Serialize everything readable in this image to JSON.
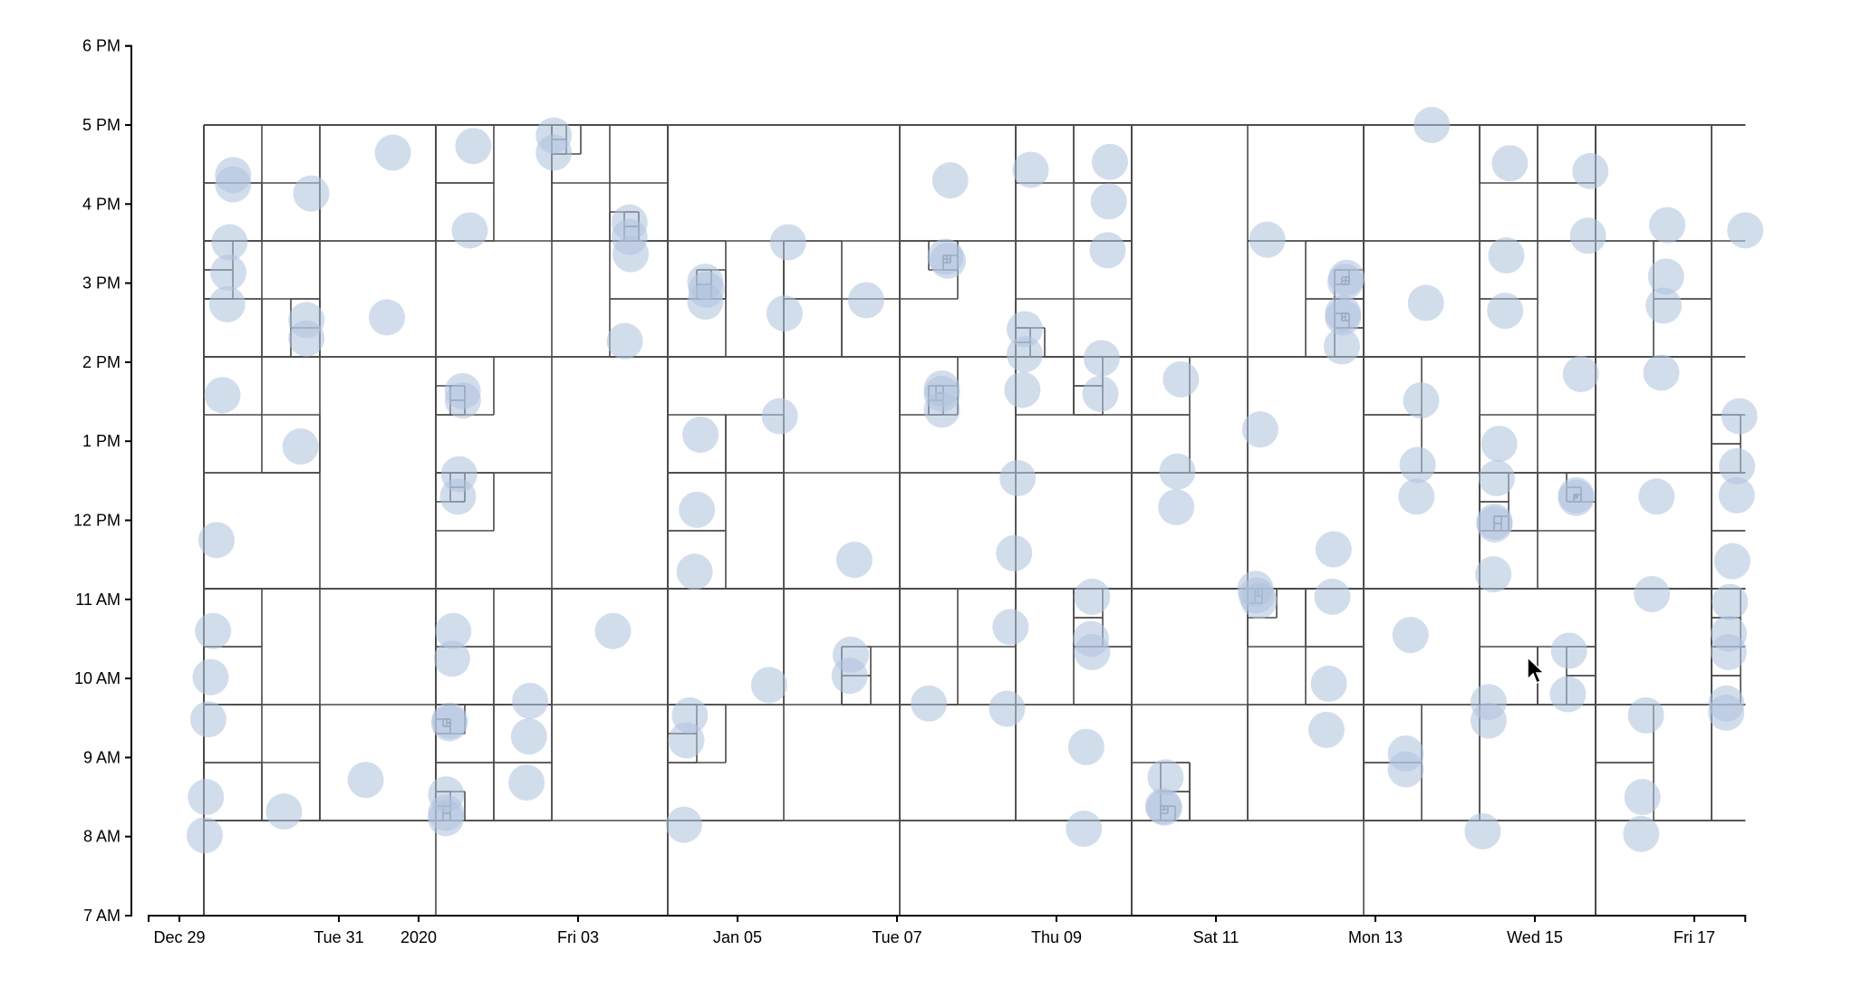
{
  "chart_data": {
    "type": "scatter",
    "title": "",
    "xlabel": "",
    "ylabel": "",
    "overlay": "quadtree",
    "xlim": [
      "2019-12-28T14:44",
      "2020-01-17T15:20"
    ],
    "ylim": [
      "07:00",
      "18:00"
    ],
    "grid": false,
    "colors": {
      "points": "#b0c4de",
      "quadtree": "#4a4a4a",
      "axis": "#000000"
    },
    "x_ticks": [
      {
        "value": "2019-12-29T00:00",
        "label": "Dec 29"
      },
      {
        "value": "2019-12-31T00:00",
        "label": "Tue 31"
      },
      {
        "value": "2020-01-01T00:00",
        "label": "2020"
      },
      {
        "value": "2020-01-03T00:00",
        "label": "Fri 03"
      },
      {
        "value": "2020-01-05T00:00",
        "label": "Jan 05"
      },
      {
        "value": "2020-01-07T00:00",
        "label": "Tue 07"
      },
      {
        "value": "2020-01-09T00:00",
        "label": "Thu 09"
      },
      {
        "value": "2020-01-11T00:00",
        "label": "Sat 11"
      },
      {
        "value": "2020-01-13T00:00",
        "label": "Mon 13"
      },
      {
        "value": "2020-01-15T00:00",
        "label": "Wed 15"
      },
      {
        "value": "2020-01-17T00:00",
        "label": "Fri 17"
      }
    ],
    "y_ticks": [
      {
        "value": "07:00",
        "label": "7 AM"
      },
      {
        "value": "08:00",
        "label": "8 AM"
      },
      {
        "value": "09:00",
        "label": "9 AM"
      },
      {
        "value": "10:00",
        "label": "10 AM"
      },
      {
        "value": "11:00",
        "label": "11 AM"
      },
      {
        "value": "12:00",
        "label": "12 PM"
      },
      {
        "value": "13:00",
        "label": "1 PM"
      },
      {
        "value": "14:00",
        "label": "2 PM"
      },
      {
        "value": "15:00",
        "label": "3 PM"
      },
      {
        "value": "16:00",
        "label": "4 PM"
      },
      {
        "value": "17:00",
        "label": "5 PM"
      },
      {
        "value": "18:00",
        "label": "6 PM"
      }
    ],
    "points": [
      [
        "2019-12-29T16:10",
        "16:22"
      ],
      [
        "2019-12-29T16:10",
        "16:15"
      ],
      [
        "2019-12-29T15:06",
        "15:31"
      ],
      [
        "2019-12-29T14:45",
        "15:08"
      ],
      [
        "2019-12-29T14:23",
        "14:44"
      ],
      [
        "2019-12-29T12:58",
        "13:35"
      ],
      [
        "2019-12-29T11:11",
        "11:45"
      ],
      [
        "2019-12-29T10:07",
        "10:36"
      ],
      [
        "2019-12-29T09:24",
        "10:01"
      ],
      [
        "2019-12-29T08:41",
        "09:29"
      ],
      [
        "2019-12-29T07:59",
        "08:30"
      ],
      [
        "2019-12-29T07:37",
        "08:01"
      ],
      [
        "2019-12-30T15:41",
        "16:08"
      ],
      [
        "2019-12-30T14:15",
        "14:32"
      ],
      [
        "2019-12-30T14:15",
        "14:18"
      ],
      [
        "2019-12-30T12:28",
        "12:56"
      ],
      [
        "2019-12-30T07:29",
        "08:19"
      ],
      [
        "2019-12-31T16:15",
        "16:39"
      ],
      [
        "2019-12-31T14:28",
        "14:34"
      ],
      [
        "2019-12-31T08:04",
        "08:43"
      ],
      [
        "2020-01-01T16:28",
        "16:44"
      ],
      [
        "2020-01-01T15:24",
        "15:40"
      ],
      [
        "2020-01-01T13:16",
        "13:38"
      ],
      [
        "2020-01-01T13:20",
        "13:31"
      ],
      [
        "2020-01-01T12:12",
        "12:35"
      ],
      [
        "2020-01-01T11:51",
        "12:18"
      ],
      [
        "2020-01-01T10:25",
        "10:36"
      ],
      [
        "2020-01-01T10:04",
        "10:15"
      ],
      [
        "2020-01-01T09:21",
        "09:28"
      ],
      [
        "2020-01-01T09:16",
        "09:26"
      ],
      [
        "2020-01-01T08:17",
        "08:32"
      ],
      [
        "2020-01-01T08:15",
        "08:18"
      ],
      [
        "2020-01-01T08:13",
        "08:14"
      ],
      [
        "2020-01-02T09:34",
        "09:43"
      ],
      [
        "2020-01-02T09:13",
        "09:16"
      ],
      [
        "2020-01-02T08:30",
        "08:41"
      ],
      [
        "2020-01-02T16:41",
        "16:52"
      ],
      [
        "2020-01-02T16:41",
        "16:39"
      ],
      [
        "2020-01-03T10:30",
        "10:36"
      ],
      [
        "2020-01-03T15:29",
        "15:46"
      ],
      [
        "2020-01-03T15:29",
        "15:35"
      ],
      [
        "2020-01-03T15:50",
        "15:22"
      ],
      [
        "2020-01-03T14:04",
        "14:16"
      ],
      [
        "2020-01-04T14:17",
        "15:01"
      ],
      [
        "2020-01-04T14:38",
        "14:55"
      ],
      [
        "2020-01-04T14:17",
        "14:46"
      ],
      [
        "2020-01-04T12:51",
        "13:05"
      ],
      [
        "2020-01-04T11:47",
        "12:08"
      ],
      [
        "2020-01-04T11:05",
        "11:21"
      ],
      [
        "2020-01-04T09:39",
        "09:32"
      ],
      [
        "2020-01-04T08:35",
        "09:13"
      ],
      [
        "2020-01-04T07:52",
        "08:09"
      ],
      [
        "2020-01-05T15:13",
        "15:31"
      ],
      [
        "2020-01-05T14:09",
        "14:37"
      ],
      [
        "2020-01-05T12:43",
        "13:19"
      ],
      [
        "2020-01-05T09:31",
        "09:55"
      ],
      [
        "2020-01-06T14:43",
        "14:47"
      ],
      [
        "2020-01-06T11:10",
        "11:30"
      ],
      [
        "2020-01-06T10:06",
        "10:18"
      ],
      [
        "2020-01-06T09:44",
        "10:02"
      ],
      [
        "2020-01-07T14:35",
        "15:20"
      ],
      [
        "2020-01-07T15:18",
        "15:17"
      ],
      [
        "2020-01-07T16:01",
        "16:18"
      ],
      [
        "2020-01-07T13:31",
        "13:40"
      ],
      [
        "2020-01-07T13:31",
        "13:36"
      ],
      [
        "2020-01-07T13:31",
        "13:24"
      ],
      [
        "2020-01-07T09:36",
        "09:41"
      ],
      [
        "2020-01-08T16:14",
        "16:26"
      ],
      [
        "2020-01-08T14:27",
        "14:25"
      ],
      [
        "2020-01-08T14:27",
        "14:06"
      ],
      [
        "2020-01-08T13:44",
        "13:39"
      ],
      [
        "2020-01-08T12:19",
        "12:32"
      ],
      [
        "2020-01-08T11:15",
        "11:35"
      ],
      [
        "2020-01-08T10:11",
        "10:39"
      ],
      [
        "2020-01-08T09:07",
        "09:37"
      ],
      [
        "2020-01-09T16:05",
        "16:32"
      ],
      [
        "2020-01-09T15:44",
        "16:02"
      ],
      [
        "2020-01-09T15:23",
        "15:25"
      ],
      [
        "2020-01-09T13:36",
        "14:03"
      ],
      [
        "2020-01-09T13:14",
        "13:36"
      ],
      [
        "2020-01-09T10:45",
        "11:02"
      ],
      [
        "2020-01-09T10:23",
        "10:30"
      ],
      [
        "2020-01-09T10:45",
        "10:20"
      ],
      [
        "2020-01-09T08:58",
        "09:08"
      ],
      [
        "2020-01-09T08:15",
        "08:06"
      ],
      [
        "2020-01-10T13:27",
        "13:47"
      ],
      [
        "2020-01-10T12:23",
        "12:37"
      ],
      [
        "2020-01-10T12:02",
        "12:10"
      ],
      [
        "2020-01-10T08:50",
        "08:45"
      ],
      [
        "2020-01-10T08:07",
        "08:23"
      ],
      [
        "2020-01-10T08:28",
        "08:22"
      ],
      [
        "2020-01-11T15:28",
        "15:33"
      ],
      [
        "2020-01-11T13:20",
        "13:09"
      ],
      [
        "2020-01-11T11:54",
        "11:08"
      ],
      [
        "2020-01-11T12:15",
        "11:03"
      ],
      [
        "2020-01-11T12:58",
        "10:59"
      ],
      [
        "2020-01-12T15:19",
        "15:04"
      ],
      [
        "2020-01-12T14:58",
        "15:01"
      ],
      [
        "2020-01-12T14:15",
        "14:37"
      ],
      [
        "2020-01-12T14:15",
        "14:34"
      ],
      [
        "2020-01-12T13:54",
        "14:12"
      ],
      [
        "2020-01-12T11:25",
        "11:38"
      ],
      [
        "2020-01-12T11:03",
        "11:02"
      ],
      [
        "2020-01-12T09:59",
        "09:56"
      ],
      [
        "2020-01-12T09:16",
        "09:21"
      ],
      [
        "2020-01-13T16:58",
        "17:00"
      ],
      [
        "2020-01-13T15:12",
        "14:45"
      ],
      [
        "2020-01-13T13:46",
        "13:31"
      ],
      [
        "2020-01-13T12:42",
        "12:42"
      ],
      [
        "2020-01-13T12:21",
        "12:18"
      ],
      [
        "2020-01-13T10:34",
        "10:33"
      ],
      [
        "2020-01-13T09:09",
        "09:03"
      ],
      [
        "2020-01-13T09:09",
        "08:51"
      ],
      [
        "2020-01-14T16:28",
        "16:31"
      ],
      [
        "2020-01-14T15:24",
        "15:21"
      ],
      [
        "2020-01-14T15:03",
        "14:39"
      ],
      [
        "2020-01-14T13:16",
        "12:58"
      ],
      [
        "2020-01-14T12:33",
        "12:32"
      ],
      [
        "2020-01-14T11:51",
        "11:59"
      ],
      [
        "2020-01-14T11:51",
        "11:57"
      ],
      [
        "2020-01-14T11:29",
        "11:19"
      ],
      [
        "2020-01-14T10:04",
        "09:42"
      ],
      [
        "2020-01-14T10:04",
        "09:28"
      ],
      [
        "2020-01-14T08:17",
        "08:04"
      ],
      [
        "2020-01-15T16:42",
        "16:25"
      ],
      [
        "2020-01-15T15:59",
        "15:36"
      ],
      [
        "2020-01-15T13:51",
        "13:51"
      ],
      [
        "2020-01-15T12:25",
        "12:19"
      ],
      [
        "2020-01-15T12:25",
        "12:17"
      ],
      [
        "2020-01-15T10:17",
        "10:21"
      ],
      [
        "2020-01-15T09:56",
        "09:48"
      ],
      [
        "2020-01-16T15:51",
        "15:44"
      ],
      [
        "2020-01-16T15:29",
        "15:05"
      ],
      [
        "2020-01-16T14:46",
        "14:43"
      ],
      [
        "2020-01-16T14:04",
        "13:52"
      ],
      [
        "2020-01-16T12:38",
        "12:18"
      ],
      [
        "2020-01-16T11:13",
        "11:04"
      ],
      [
        "2020-01-16T09:26",
        "09:32"
      ],
      [
        "2020-01-16T08:22",
        "08:30"
      ],
      [
        "2020-01-16T08:00",
        "08:02"
      ],
      [
        "2020-01-17T15:20",
        "15:40"
      ],
      [
        "2020-01-17T13:34",
        "13:19"
      ],
      [
        "2020-01-17T12:51",
        "12:41"
      ],
      [
        "2020-01-17T12:45",
        "12:19"
      ],
      [
        "2020-01-17T11:26",
        "11:29"
      ],
      [
        "2020-01-17T10:43",
        "10:58"
      ],
      [
        "2020-01-17T10:22",
        "10:34"
      ],
      [
        "2020-01-17T10:18",
        "10:20"
      ],
      [
        "2020-01-17T09:39",
        "09:41"
      ],
      [
        "2020-01-17T09:35",
        "09:34"
      ]
    ]
  },
  "cursor": {
    "icon": "mouse-pointer-arrow"
  }
}
